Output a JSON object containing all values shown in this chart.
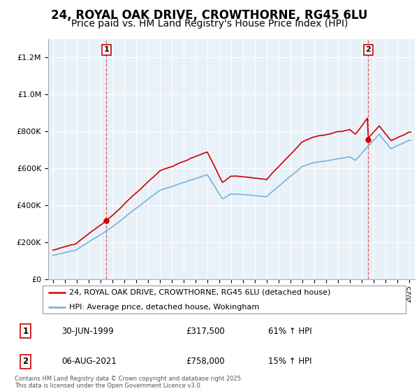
{
  "title": "24, ROYAL OAK DRIVE, CROWTHORNE, RG45 6LU",
  "subtitle": "Price paid vs. HM Land Registry's House Price Index (HPI)",
  "legend_line1": "24, ROYAL OAK DRIVE, CROWTHORNE, RG45 6LU (detached house)",
  "legend_line2": "HPI: Average price, detached house, Wokingham",
  "footnote": "Contains HM Land Registry data © Crown copyright and database right 2025.\nThis data is licensed under the Open Government Licence v3.0.",
  "marker1_date": "30-JUN-1999",
  "marker1_price": "£317,500",
  "marker1_hpi": "61% ↑ HPI",
  "marker2_date": "06-AUG-2021",
  "marker2_price": "£758,000",
  "marker2_hpi": "15% ↑ HPI",
  "sale1_year": 1999.5,
  "sale1_value": 317500,
  "sale2_year": 2021.58,
  "sale2_value": 758000,
  "hpi_color": "#6baed6",
  "price_color": "#cc0000",
  "marker_color": "#cc0000",
  "vline_color": "#dd4444",
  "ylim_max": 1300000,
  "ylim_min": 0,
  "chart_bg": "#e8f0f8",
  "background_color": "#ffffff",
  "grid_color": "#ffffff",
  "title_fontsize": 12,
  "subtitle_fontsize": 10
}
